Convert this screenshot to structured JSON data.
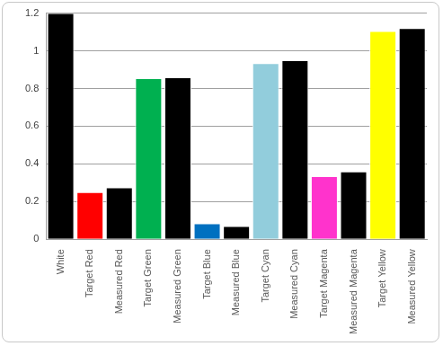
{
  "chart_data": {
    "type": "bar",
    "categories": [
      "White",
      "Target Red",
      "Measured Red",
      "Target Green",
      "Measured Green",
      "Target Blue",
      "Measured Blue",
      "Target Cyan",
      "Measured Cyan",
      "Target Magenta",
      "Measured Magenta",
      "Target Yellow",
      "Measured Yellow"
    ],
    "values": [
      1.2,
      0.25,
      0.275,
      0.855,
      0.86,
      0.085,
      0.07,
      0.935,
      0.95,
      0.335,
      0.36,
      1.105,
      1.12
    ],
    "colors": [
      "#000000",
      "#ff0000",
      "#000000",
      "#00b050",
      "#000000",
      "#0070c0",
      "#000000",
      "#92cddc",
      "#000000",
      "#ff33cc",
      "#000000",
      "#ffff00",
      "#000000"
    ],
    "ylim": [
      0,
      1.2
    ],
    "yticks": [
      0,
      0.2,
      0.4,
      0.6,
      0.8,
      1,
      1.2
    ],
    "grid": true
  }
}
